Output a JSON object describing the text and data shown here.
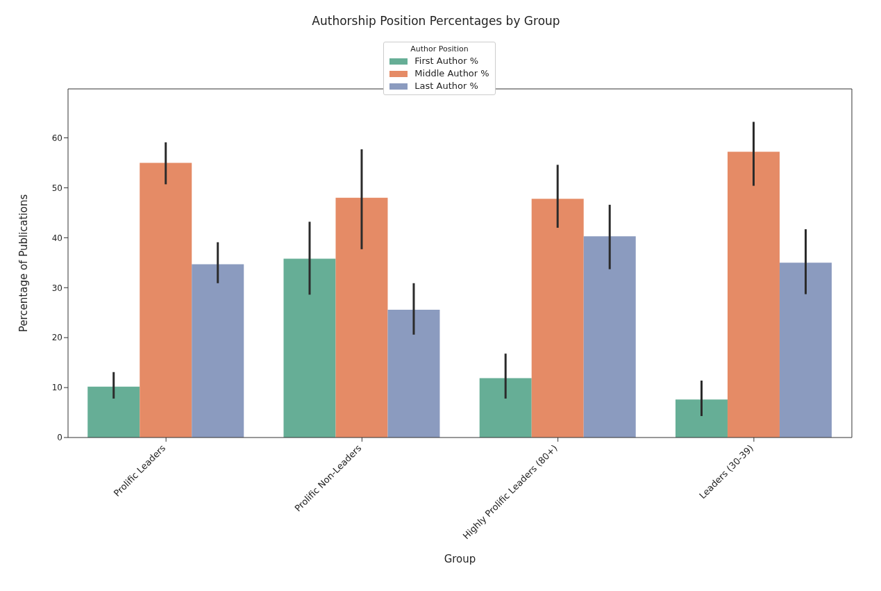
{
  "chart_data": {
    "type": "bar",
    "title": "Authorship Position Percentages by Group",
    "xlabel": "Group",
    "ylabel": "Percentage of Publications",
    "legend_title": "Author Position",
    "categories": [
      "Prolific Leaders",
      "Prolific Non-Leaders",
      "Highly Prolific Leaders (80+)",
      "Leaders (30-39)"
    ],
    "series": [
      {
        "name": "First Author %",
        "color": "#66ae96",
        "values": [
          10.2,
          35.8,
          11.9,
          7.6
        ],
        "errors": [
          [
            7.8,
            13.1
          ],
          [
            28.6,
            43.2
          ],
          [
            7.8,
            16.8
          ],
          [
            4.3,
            11.4
          ]
        ]
      },
      {
        "name": "Middle Author %",
        "color": "#e58b66",
        "values": [
          55.0,
          48.0,
          47.8,
          57.2
        ],
        "errors": [
          [
            50.7,
            59.1
          ],
          [
            37.7,
            57.7
          ],
          [
            42.0,
            54.6
          ],
          [
            50.4,
            63.2
          ]
        ]
      },
      {
        "name": "Last Author %",
        "color": "#8b9bbf",
        "values": [
          34.7,
          25.6,
          40.3,
          35.0
        ],
        "errors": [
          [
            30.9,
            39.1
          ],
          [
            20.6,
            30.9
          ],
          [
            33.7,
            46.6
          ],
          [
            28.7,
            41.7
          ]
        ]
      }
    ],
    "ylim": [
      0,
      69.8
    ],
    "yticks": [
      0,
      10,
      20,
      30,
      40,
      50,
      60
    ],
    "grid": false,
    "legend": "top"
  }
}
